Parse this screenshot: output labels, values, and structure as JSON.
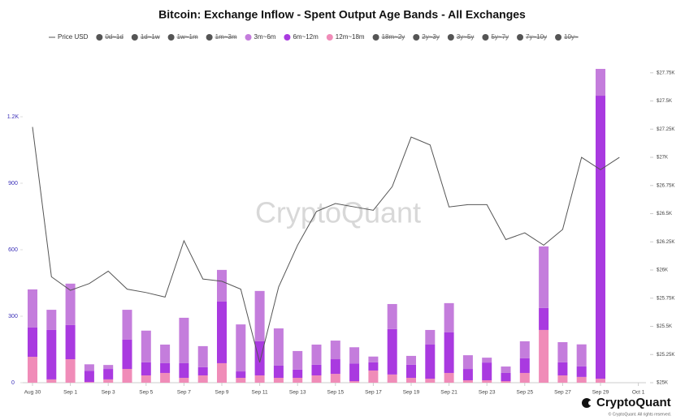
{
  "chart_data": {
    "type": "bar",
    "stacked": true,
    "title": "Bitcoin: Exchange Inflow - Spent Output Age Bands - All Exchanges",
    "watermark": "CryptoQuant",
    "brand": "CryptoQuant",
    "copyright": "© CryptoQuant. All rights reserved.",
    "categories": [
      "Aug 30",
      null,
      "Sep 1",
      null,
      "Sep 3",
      null,
      "Sep 5",
      null,
      "Sep 7",
      null,
      "Sep 9",
      null,
      "Sep 11",
      null,
      "Sep 13",
      null,
      "Sep 15",
      null,
      "Sep 17",
      null,
      "Sep 19",
      null,
      "Sep 21",
      null,
      "Sep 23",
      null,
      "Sep 25",
      null,
      "Sep 27",
      null,
      "Sep 29",
      null,
      "Oct 1"
    ],
    "ylim": [
      0,
      1500
    ],
    "yticks": [
      0,
      300,
      600,
      900,
      {
        "value": 1200,
        "label": "1.2K"
      }
    ],
    "y2lim": [
      25000,
      27950
    ],
    "y2ticks": [
      {
        "value": 25000,
        "label": "$25K"
      },
      {
        "value": 25250,
        "label": "$25.25K"
      },
      {
        "value": 25500,
        "label": "$25.5K"
      },
      {
        "value": 25750,
        "label": "$25.75K"
      },
      {
        "value": 26000,
        "label": "$26K"
      },
      {
        "value": 26250,
        "label": "$26.25K"
      },
      {
        "value": 26500,
        "label": "$26.5K"
      },
      {
        "value": 26750,
        "label": "$26.75K"
      },
      {
        "value": 27000,
        "label": "$27K"
      },
      {
        "value": 27250,
        "label": "$27.25K"
      },
      {
        "value": 27500,
        "label": "$27.5K"
      },
      {
        "value": 27750,
        "label": "$27.75K"
      }
    ],
    "series": [
      {
        "name": "Price USD",
        "type": "line",
        "axis": "y2",
        "color": "#555555",
        "values": [
          27270,
          25940,
          25820,
          25880,
          25990,
          25830,
          25800,
          25760,
          26260,
          25920,
          25900,
          25830,
          25180,
          25850,
          26220,
          26520,
          26590,
          26560,
          26530,
          26740,
          27180,
          27110,
          26560,
          26580,
          26580,
          26270,
          26330,
          26220,
          26360,
          27000,
          26890,
          27000,
          null
        ]
      },
      {
        "name": "0d~1d",
        "hidden": true,
        "color": "#555555"
      },
      {
        "name": "1d~1w",
        "hidden": true,
        "color": "#555555"
      },
      {
        "name": "1w~1m",
        "hidden": true,
        "color": "#555555"
      },
      {
        "name": "1m~3m",
        "hidden": true,
        "color": "#555555"
      },
      {
        "name": "3m~6m",
        "color": "#c47ddc",
        "values": [
          172,
          91,
          187,
          29,
          18,
          135,
          143,
          84,
          205,
          95,
          143,
          212,
          227,
          168,
          84,
          91,
          84,
          73,
          26,
          113,
          40,
          66,
          132,
          62,
          22,
          29,
          77,
          278,
          91,
          99,
          121,
          null,
          null
        ]
      },
      {
        "name": "6m~12m",
        "color": "#a93ae0",
        "values": [
          132,
          223,
          154,
          51,
          47,
          132,
          59,
          44,
          66,
          37,
          278,
          29,
          154,
          55,
          37,
          48,
          66,
          80,
          37,
          205,
          59,
          154,
          183,
          51,
          80,
          37,
          66,
          99,
          59,
          48,
          1277,
          null,
          null
        ]
      },
      {
        "name": "12m~18m",
        "color": "#f08cb8",
        "values": [
          117,
          15,
          106,
          3,
          15,
          62,
          33,
          44,
          22,
          33,
          88,
          22,
          33,
          22,
          22,
          33,
          40,
          7,
          55,
          37,
          22,
          18,
          44,
          11,
          11,
          7,
          44,
          238,
          33,
          26,
          18,
          null,
          null
        ]
      },
      {
        "name": "18m~2y",
        "hidden": true,
        "color": "#555555"
      },
      {
        "name": "2y~3y",
        "hidden": true,
        "color": "#555555"
      },
      {
        "name": "3y~5y",
        "hidden": true,
        "color": "#555555"
      },
      {
        "name": "5y~7y",
        "hidden": true,
        "color": "#555555"
      },
      {
        "name": "7y~10y",
        "hidden": true,
        "color": "#555555"
      },
      {
        "name": "10y~",
        "hidden": true,
        "color": "#555555"
      }
    ]
  }
}
